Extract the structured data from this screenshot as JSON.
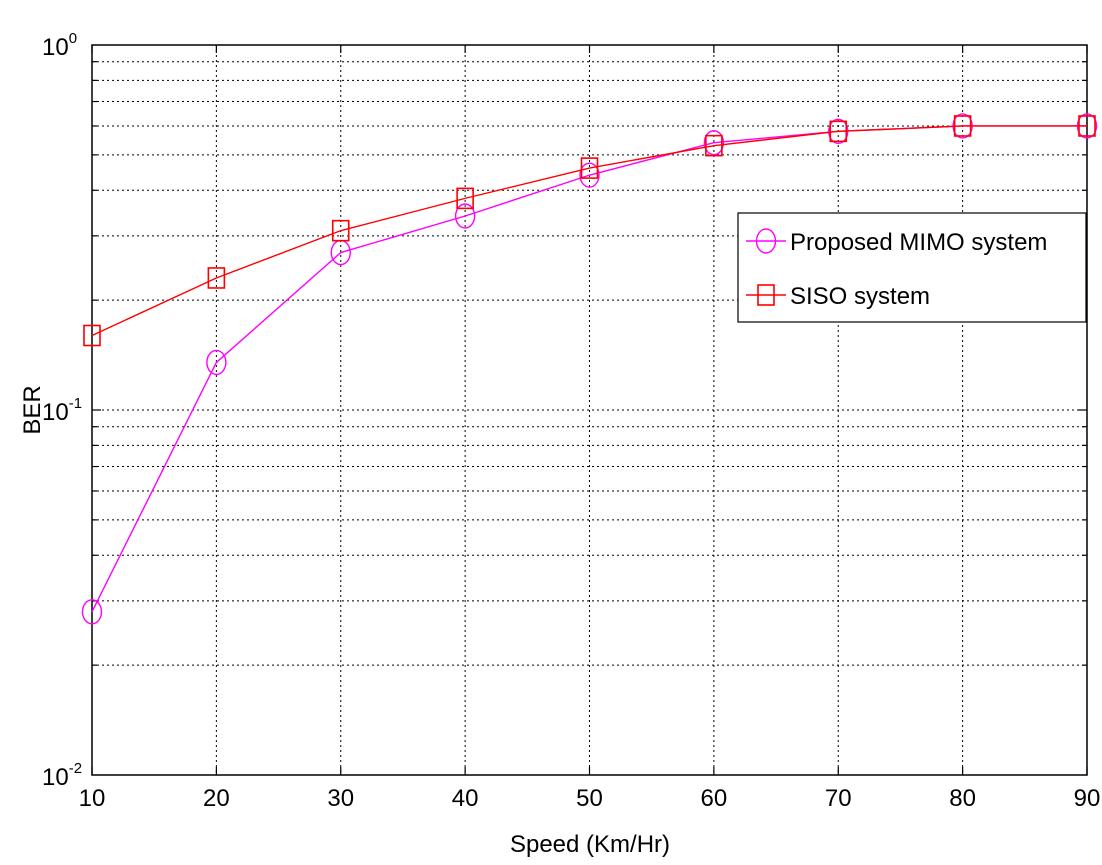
{
  "chart_data": {
    "type": "line",
    "title": "",
    "xlabel": "Speed (Km/Hr)",
    "ylabel": "BER",
    "xscale": "linear",
    "yscale": "log",
    "xlim": [
      10,
      90
    ],
    "ylim": [
      0.01,
      1
    ],
    "xticks": [
      10,
      20,
      30,
      40,
      50,
      60,
      70,
      80,
      90
    ],
    "yticks": [
      {
        "value": 0.01,
        "base": "10",
        "exp": "-2"
      },
      {
        "value": 0.1,
        "base": "10",
        "exp": "-1"
      },
      {
        "value": 1,
        "base": "10",
        "exp": "0"
      }
    ],
    "grid": true,
    "legend_position": "right",
    "x": [
      10,
      20,
      30,
      40,
      50,
      60,
      70,
      80,
      90
    ],
    "series": [
      {
        "name": "Proposed MIMO system",
        "color": "#ff00ff",
        "marker": "circle",
        "values": [
          0.028,
          0.135,
          0.27,
          0.34,
          0.44,
          0.54,
          0.58,
          0.6,
          0.6
        ]
      },
      {
        "name": "SISO system",
        "color": "#ff0000",
        "marker": "square",
        "values": [
          0.16,
          0.23,
          0.31,
          0.38,
          0.46,
          0.53,
          0.58,
          0.6,
          0.6
        ]
      }
    ]
  }
}
